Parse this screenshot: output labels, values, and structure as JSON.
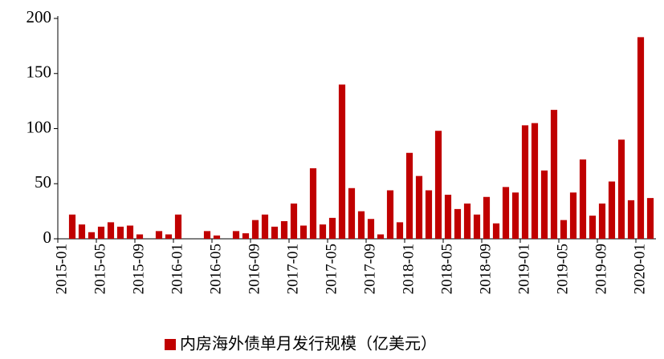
{
  "chart_data": {
    "type": "bar",
    "categories": [
      "2015-01",
      null,
      null,
      null,
      "2015-05",
      null,
      null,
      null,
      "2015-09",
      null,
      null,
      null,
      "2016-01",
      null,
      null,
      null,
      "2016-05",
      null,
      null,
      null,
      "2016-09",
      null,
      null,
      null,
      "2017-01",
      null,
      null,
      null,
      "2017-05",
      null,
      null,
      null,
      "2017-09",
      null,
      null,
      null,
      "2018-01",
      null,
      null,
      null,
      "2018-05",
      null,
      null,
      null,
      "2018-09",
      null,
      null,
      null,
      "2019-01",
      null,
      null,
      null,
      "2019-05",
      null,
      null,
      null,
      "2019-09",
      null,
      null,
      null,
      "2020-01",
      null
    ],
    "series": [
      {
        "name": "内房海外债单月发行规模（亿美元）",
        "color": "#c00000",
        "values": [
          0,
          22,
          13,
          6,
          11,
          15,
          11,
          12,
          4,
          0,
          7,
          4,
          22,
          0,
          0,
          7,
          3,
          0,
          7,
          5,
          17,
          22,
          11,
          16,
          32,
          12,
          64,
          13,
          19,
          140,
          46,
          25,
          18,
          4,
          44,
          15,
          78,
          57,
          44,
          98,
          40,
          27,
          32,
          22,
          38,
          14,
          47,
          42,
          103,
          105,
          62,
          117,
          17,
          42,
          72,
          21,
          32,
          52,
          90,
          35,
          183,
          37
        ]
      }
    ],
    "ylim": [
      0,
      200
    ],
    "yticks": [
      0,
      50,
      100,
      150,
      200
    ],
    "grid": false,
    "legend": "bottom"
  }
}
